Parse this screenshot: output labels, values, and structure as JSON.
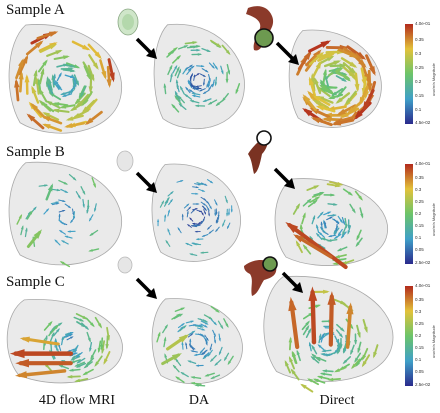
{
  "rows": [
    {
      "label": "Sample A",
      "colorbar": {
        "max": "4.0e-01",
        "ticks": [
          "0.35",
          "0.3",
          "0.25",
          "0.2",
          "0.15",
          "0.1"
        ],
        "min": "4.5e-02",
        "title": "uvw/m/s Magnitude"
      }
    },
    {
      "label": "Sample B",
      "colorbar": {
        "max": "4.0e-01",
        "ticks": [
          "0.35",
          "0.3",
          "0.25",
          "0.2",
          "0.15",
          "0.1",
          "0.05"
        ],
        "min": "2.5e-02",
        "title": "uvw/m/s Magnitude"
      }
    },
    {
      "label": "Sample C",
      "colorbar": {
        "max": "4.0e-01",
        "ticks": [
          "0.35",
          "0.3",
          "0.25",
          "0.2",
          "0.15",
          "0.1",
          "0.05"
        ],
        "min": "2.5e-02",
        "title": "uvw/m/s Magnitude"
      }
    }
  ],
  "columns": [
    "4D flow MRI",
    "DA",
    "Direct"
  ],
  "colors": {
    "low": "#2a2a8c",
    "mid_low": "#3fa0c8",
    "mid": "#6cc46a",
    "mid_high": "#e3c23a",
    "high": "#b22a1c",
    "shell": "#d9d9d9"
  }
}
